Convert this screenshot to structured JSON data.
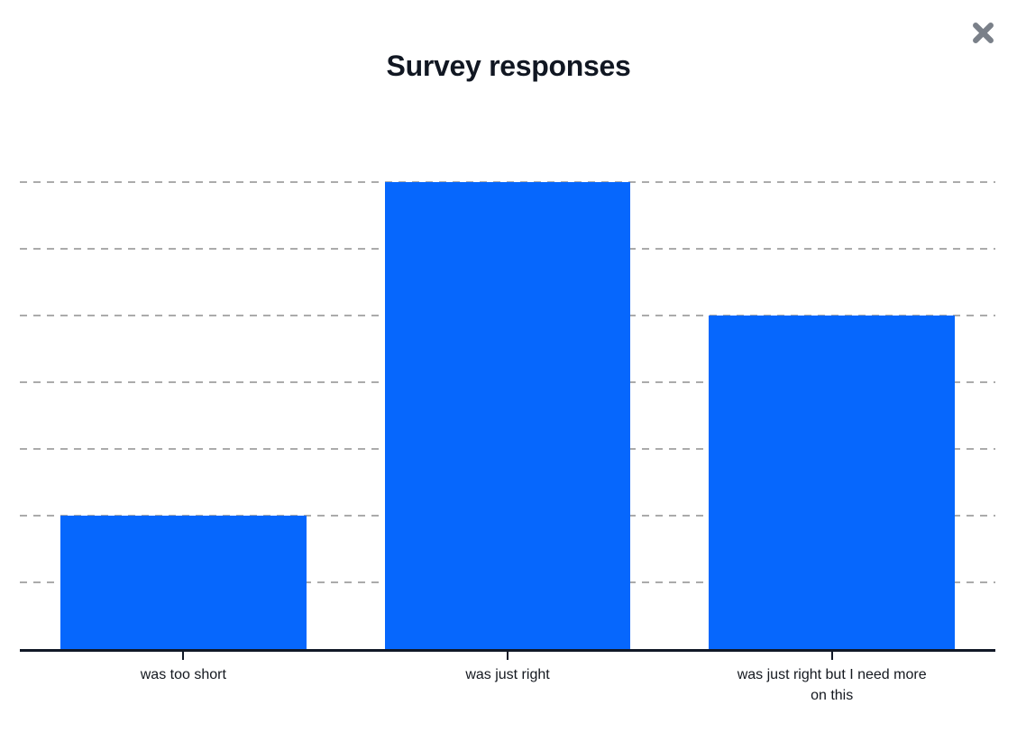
{
  "window": {
    "close_button_label": "Close"
  },
  "colors": {
    "bar": "#0667fd",
    "gridline": "#ababab",
    "axis": "#111827",
    "title": "#111722",
    "label": "#14181f",
    "close_icon": "#7a8089"
  },
  "chart_data": {
    "type": "bar",
    "title": "Survey responses",
    "categories": [
      "was too short",
      "was just right",
      "was just right but I need more on this"
    ],
    "values": [
      2,
      7,
      5
    ],
    "xlabel": "",
    "ylabel": "",
    "ylim": [
      0,
      7
    ],
    "gridlines": {
      "orientation": "horizontal",
      "interval": 1,
      "style": "dashed",
      "count": 7
    },
    "legend": "none",
    "y_tick_labels_visible": false
  }
}
